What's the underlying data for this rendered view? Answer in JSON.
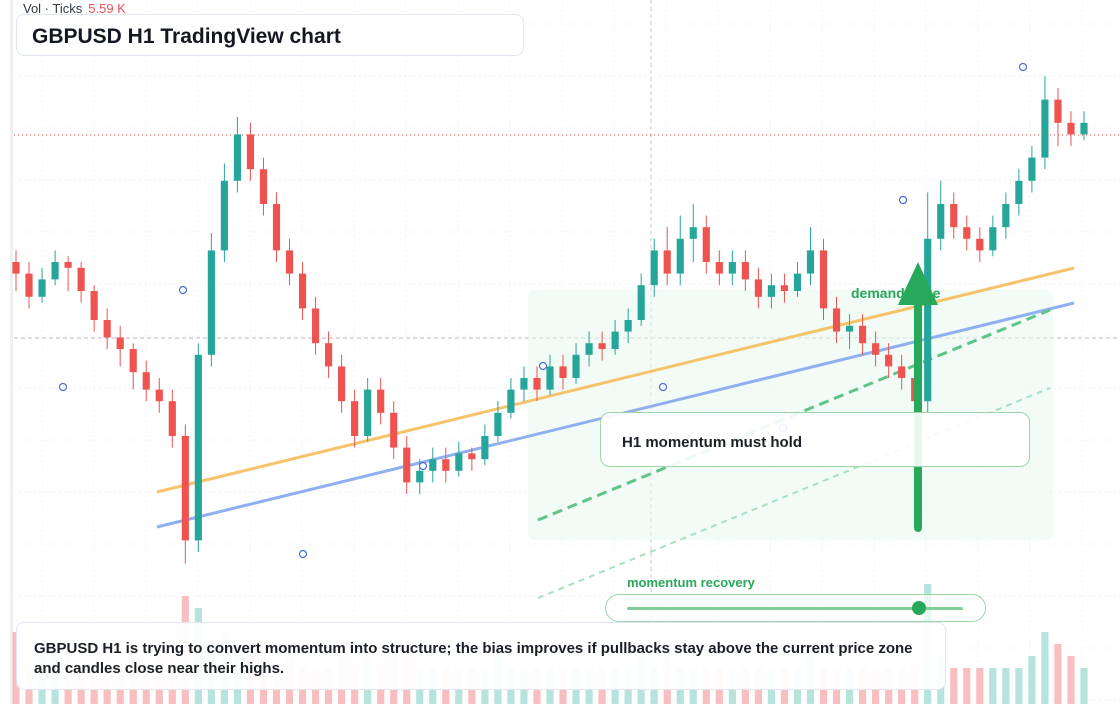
{
  "header": {
    "vol_label": "Vol · Ticks",
    "vol_value": "5.59 K",
    "title": "GBPUSD H1 TradingView chart"
  },
  "annotations": {
    "callout": "H1 momentum must hold",
    "demand_label": "demand zone",
    "recovery_label": "momentum recovery",
    "recovery_level": 0.87
  },
  "summary": "GBPUSD H1 is trying to convert momentum into structure; the bias improves if pullbacks stay above the current price zone and candles close near their highs.",
  "colors": {
    "up": "#26a69a",
    "down": "#ef5350",
    "up_volume": "#9ed9cf",
    "down_volume": "#f7a8aa",
    "orange_line": "#f5c36a",
    "blue_line": "#8fb0f0",
    "green_accent": "#27a85a"
  },
  "chart_data": {
    "type": "candlestick",
    "title": "GBPUSD H1 TradingView chart",
    "xlabel": "",
    "ylabel": "",
    "ylim": [
      0,
      100
    ],
    "grid": true,
    "ohlc_relative": [
      [
        60,
        58,
        55,
        62
      ],
      [
        58,
        54,
        52,
        60
      ],
      [
        54,
        57,
        53,
        59
      ],
      [
        57,
        60,
        56,
        62
      ],
      [
        60,
        59,
        55,
        61
      ],
      [
        59,
        55,
        53,
        60
      ],
      [
        55,
        50,
        48,
        56
      ],
      [
        50,
        47,
        45,
        52
      ],
      [
        47,
        45,
        42,
        49
      ],
      [
        45,
        41,
        38,
        46
      ],
      [
        41,
        38,
        36,
        43
      ],
      [
        38,
        36,
        34,
        40
      ],
      [
        36,
        30,
        28,
        38
      ],
      [
        30,
        12,
        8,
        32
      ],
      [
        12,
        44,
        10,
        46
      ],
      [
        44,
        62,
        42,
        65
      ],
      [
        62,
        74,
        60,
        77
      ],
      [
        74,
        82,
        72,
        85
      ],
      [
        82,
        76,
        74,
        84
      ],
      [
        76,
        70,
        68,
        78
      ],
      [
        70,
        62,
        60,
        72
      ],
      [
        62,
        58,
        56,
        64
      ],
      [
        58,
        52,
        50,
        60
      ],
      [
        52,
        46,
        44,
        54
      ],
      [
        46,
        42,
        40,
        48
      ],
      [
        42,
        36,
        34,
        44
      ],
      [
        36,
        30,
        28,
        38
      ],
      [
        30,
        38,
        29,
        40
      ],
      [
        38,
        34,
        32,
        40
      ],
      [
        34,
        28,
        26,
        36
      ],
      [
        28,
        22,
        20,
        30
      ],
      [
        22,
        24,
        20,
        26
      ],
      [
        24,
        26,
        22,
        28
      ],
      [
        26,
        24,
        22,
        28
      ],
      [
        24,
        27,
        23,
        29
      ],
      [
        27,
        26,
        24,
        28
      ],
      [
        26,
        30,
        25,
        32
      ],
      [
        30,
        34,
        29,
        36
      ],
      [
        34,
        38,
        33,
        40
      ],
      [
        38,
        40,
        36,
        42
      ],
      [
        40,
        38,
        36,
        42
      ],
      [
        38,
        42,
        37,
        44
      ],
      [
        42,
        40,
        38,
        44
      ],
      [
        40,
        44,
        39,
        46
      ],
      [
        44,
        46,
        42,
        48
      ],
      [
        46,
        45,
        43,
        48
      ],
      [
        45,
        48,
        44,
        50
      ],
      [
        48,
        50,
        46,
        52
      ],
      [
        50,
        56,
        49,
        58
      ],
      [
        56,
        62,
        54,
        64
      ],
      [
        62,
        58,
        56,
        66
      ],
      [
        58,
        64,
        56,
        68
      ],
      [
        64,
        66,
        60,
        70
      ],
      [
        66,
        60,
        58,
        68
      ],
      [
        60,
        58,
        56,
        62
      ],
      [
        58,
        60,
        56,
        62
      ],
      [
        60,
        57,
        55,
        62
      ],
      [
        57,
        54,
        52,
        59
      ],
      [
        54,
        56,
        52,
        58
      ],
      [
        56,
        55,
        53,
        58
      ],
      [
        55,
        58,
        54,
        60
      ],
      [
        58,
        62,
        56,
        66
      ],
      [
        62,
        52,
        50,
        64
      ],
      [
        52,
        48,
        46,
        54
      ],
      [
        48,
        49,
        45,
        51
      ],
      [
        49,
        46,
        44,
        51
      ],
      [
        46,
        44,
        42,
        48
      ],
      [
        44,
        42,
        40,
        46
      ],
      [
        42,
        40,
        38,
        44
      ],
      [
        40,
        36,
        34,
        42
      ],
      [
        36,
        64,
        34,
        72
      ],
      [
        64,
        70,
        62,
        74
      ],
      [
        70,
        66,
        64,
        72
      ],
      [
        66,
        64,
        62,
        68
      ],
      [
        64,
        62,
        60,
        66
      ],
      [
        62,
        66,
        61,
        68
      ],
      [
        66,
        70,
        64,
        72
      ],
      [
        70,
        74,
        68,
        76
      ],
      [
        74,
        78,
        72,
        80
      ],
      [
        78,
        88,
        76,
        92
      ],
      [
        88,
        84,
        80,
        90
      ],
      [
        84,
        82,
        80,
        86
      ],
      [
        82,
        84,
        81,
        86
      ]
    ],
    "volume_relative": [
      0.6,
      0.3,
      0.5,
      0.4,
      0.4,
      0.3,
      0.3,
      0.4,
      0.3,
      0.4,
      0.3,
      0.4,
      0.5,
      0.9,
      0.8,
      0.5,
      0.6,
      0.5,
      0.4,
      0.3,
      0.3,
      0.4,
      0.3,
      0.3,
      0.3,
      0.4,
      0.3,
      0.4,
      0.3,
      0.4,
      0.5,
      0.3,
      0.3,
      0.3,
      0.3,
      0.3,
      0.3,
      0.4,
      0.3,
      0.3,
      0.3,
      0.3,
      0.3,
      0.3,
      0.3,
      0.3,
      0.3,
      0.3,
      0.4,
      0.3,
      0.4,
      0.3,
      0.3,
      0.3,
      0.3,
      0.3,
      0.3,
      0.3,
      0.3,
      0.3,
      0.3,
      0.4,
      0.3,
      0.3,
      0.3,
      0.3,
      0.3,
      0.3,
      0.3,
      0.3,
      1.0,
      0.4,
      0.3,
      0.3,
      0.3,
      0.3,
      0.3,
      0.3,
      0.4,
      0.6,
      0.5,
      0.4,
      0.3
    ]
  }
}
